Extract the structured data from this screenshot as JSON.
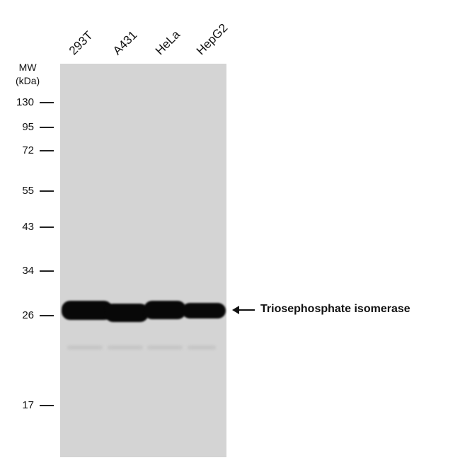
{
  "lanes": [
    "293T",
    "A431",
    "HeLa",
    "HepG2"
  ],
  "mw_title": [
    "MW",
    "(kDa)"
  ],
  "markers": [
    "130",
    "95",
    "72",
    "55",
    "43",
    "34",
    "26",
    "17"
  ],
  "target_label": "Triosephosphate isomerase",
  "colors": {
    "membrane": "#d4d4d4",
    "band": "#080808"
  }
}
